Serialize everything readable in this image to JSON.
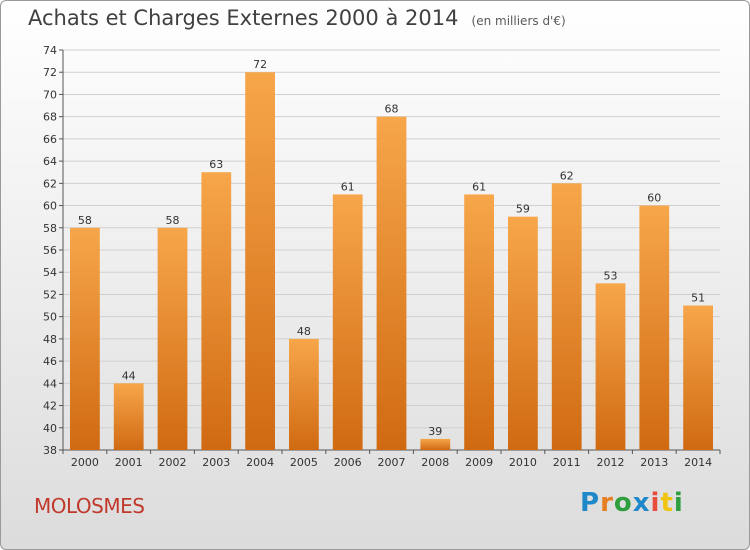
{
  "header": {
    "title": "Achats et Charges Externes 2000 à 2014",
    "subtitle": "(en milliers d'€)"
  },
  "footer": {
    "commune": "MOLOSMES",
    "logo_text": "Proxiti",
    "logo_colors": [
      "#1e88c8",
      "#e67e22",
      "#2e9e3e",
      "#1e88c8",
      "#e74c3c",
      "#f1c40f",
      "#2e9e3e"
    ]
  },
  "chart_data": {
    "type": "bar",
    "categories": [
      "2000",
      "2001",
      "2002",
      "2003",
      "2004",
      "2005",
      "2006",
      "2007",
      "2008",
      "2009",
      "2010",
      "2011",
      "2012",
      "2013",
      "2014"
    ],
    "values": [
      58,
      44,
      58,
      63,
      72,
      48,
      61,
      68,
      39,
      61,
      59,
      62,
      53,
      60,
      51
    ],
    "ylim": [
      38,
      74
    ],
    "yticks": [
      38,
      40,
      42,
      44,
      46,
      48,
      50,
      52,
      54,
      56,
      58,
      60,
      62,
      64,
      66,
      68,
      70,
      72,
      74
    ],
    "grid": true,
    "bar_color": "#f0922e"
  }
}
